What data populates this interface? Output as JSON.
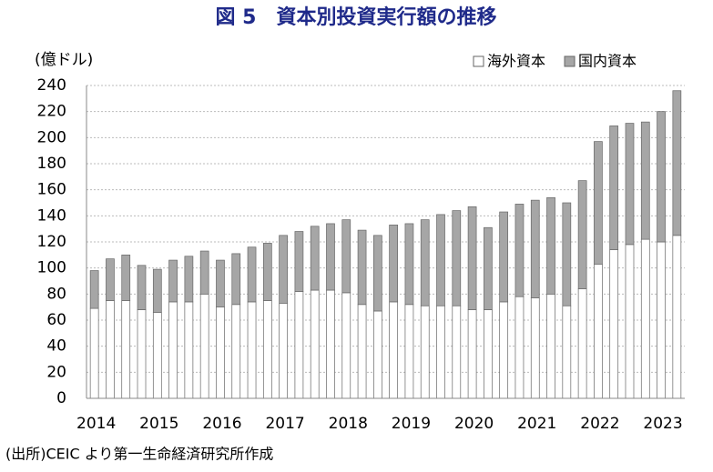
{
  "chart_data": {
    "type": "bar",
    "stacked": true,
    "title": "図 5　資本別投資実行額の推移",
    "y_label": "(億ドル)",
    "source": "(出所)CEIC より第一生命経済研究所作成",
    "categories": [
      "2014",
      null,
      null,
      null,
      "2015",
      null,
      null,
      null,
      "2016",
      null,
      null,
      null,
      "2017",
      null,
      null,
      null,
      "2018",
      null,
      null,
      null,
      "2019",
      null,
      null,
      null,
      "2020",
      null,
      null,
      null,
      "2021",
      null,
      null,
      null,
      "2022",
      null,
      null,
      null,
      "2023",
      null
    ],
    "series": [
      {
        "name": "海外資本",
        "color": "#ffffff",
        "values": [
          69,
          75,
          75,
          68,
          66,
          74,
          74,
          80,
          70,
          72,
          74,
          75,
          73,
          82,
          83,
          83,
          81,
          72,
          67,
          74,
          72,
          71,
          71,
          71,
          68,
          68,
          74,
          78,
          77,
          80,
          71,
          84,
          103,
          114,
          118,
          122,
          120,
          125
        ]
      },
      {
        "name": "国内資本",
        "color": "#a6a6a6",
        "values": [
          29,
          32,
          35,
          34,
          33,
          32,
          35,
          33,
          36,
          39,
          42,
          44,
          52,
          46,
          49,
          51,
          56,
          57,
          58,
          59,
          62,
          66,
          70,
          73,
          79,
          63,
          69,
          71,
          75,
          74,
          79,
          83,
          94,
          95,
          93,
          90,
          100,
          111
        ]
      }
    ],
    "ylim": [
      0,
      240
    ],
    "yticks": [
      0,
      20,
      40,
      60,
      80,
      100,
      120,
      140,
      160,
      180,
      200,
      220,
      240
    ],
    "grid": true,
    "legend": "top-right"
  }
}
